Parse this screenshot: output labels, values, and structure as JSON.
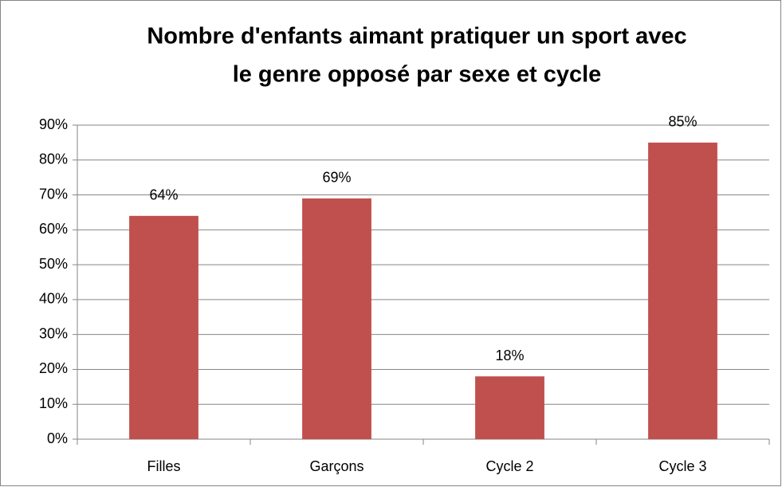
{
  "chart_data": {
    "type": "bar",
    "title": [
      "Nombre d'enfants aimant pratiquer un sport avec",
      "le genre opposé par sexe et cycle"
    ],
    "categories": [
      "Filles",
      "Garçons",
      "Cycle 2",
      "Cycle 3"
    ],
    "values": [
      64,
      69,
      18,
      85
    ],
    "value_labels": [
      "64%",
      "69%",
      "18%",
      "85%"
    ],
    "color": "#c0504d",
    "ylim": [
      0,
      90
    ],
    "yticks": [
      {
        "value": 0,
        "label": "0%"
      },
      {
        "value": 10,
        "label": "10%"
      },
      {
        "value": 20,
        "label": "20%"
      },
      {
        "value": 30,
        "label": "30%"
      },
      {
        "value": 40,
        "label": "40%"
      },
      {
        "value": 50,
        "label": "50%"
      },
      {
        "value": 60,
        "label": "60%"
      },
      {
        "value": 70,
        "label": "70%"
      },
      {
        "value": 80,
        "label": "80%"
      },
      {
        "value": 90,
        "label": "90%"
      }
    ],
    "grid": true
  }
}
